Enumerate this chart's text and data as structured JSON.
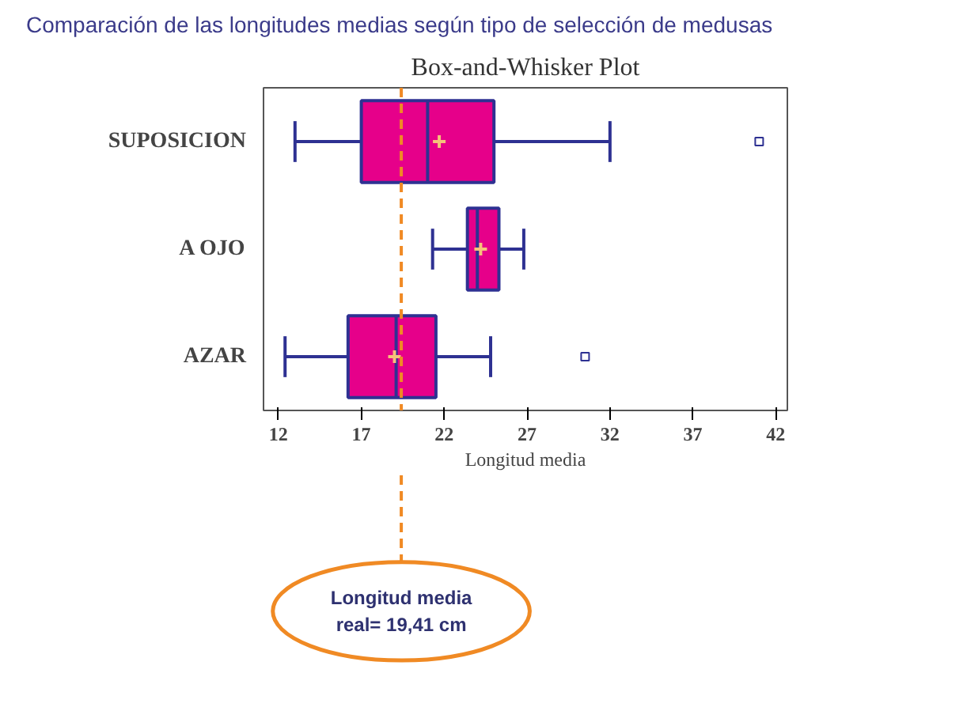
{
  "chart_data": {
    "type": "box",
    "orientation": "horizontal",
    "title": "Comparación de las longitudes medias según tipo de selección de medusas",
    "subtitle": "Box-and-Whisker Plot",
    "xlabel": "Longitud media",
    "categories": [
      "SUPOSICION",
      "A OJO",
      "AZAR"
    ],
    "series": [
      {
        "color": "#e6008a",
        "boxes": [
          {
            "low": 13.0,
            "q1": 17.0,
            "median": 21.0,
            "q3": 25.0,
            "high": 32.0,
            "mean": 21.7,
            "outliers": [
              41.0
            ]
          },
          {
            "low": 21.3,
            "q1": 23.4,
            "median": 24.0,
            "q3": 25.3,
            "high": 26.8,
            "mean": 24.2
          },
          {
            "low": 12.4,
            "q1": 16.2,
            "median": 19.1,
            "q3": 21.5,
            "high": 24.8,
            "mean": 19.0,
            "outliers": [
              30.5
            ]
          }
        ]
      }
    ],
    "xlim": [
      11.1,
      42.7
    ],
    "xticks": [
      12,
      17,
      22,
      27,
      32,
      37,
      42
    ],
    "grid": false,
    "ref_lines": [
      {
        "axis": "x",
        "value": 19.41,
        "color": "#f08a24",
        "line_style": "dashed"
      }
    ],
    "annotations": [
      "Longitud media\nreal= 19,41 cm"
    ]
  }
}
